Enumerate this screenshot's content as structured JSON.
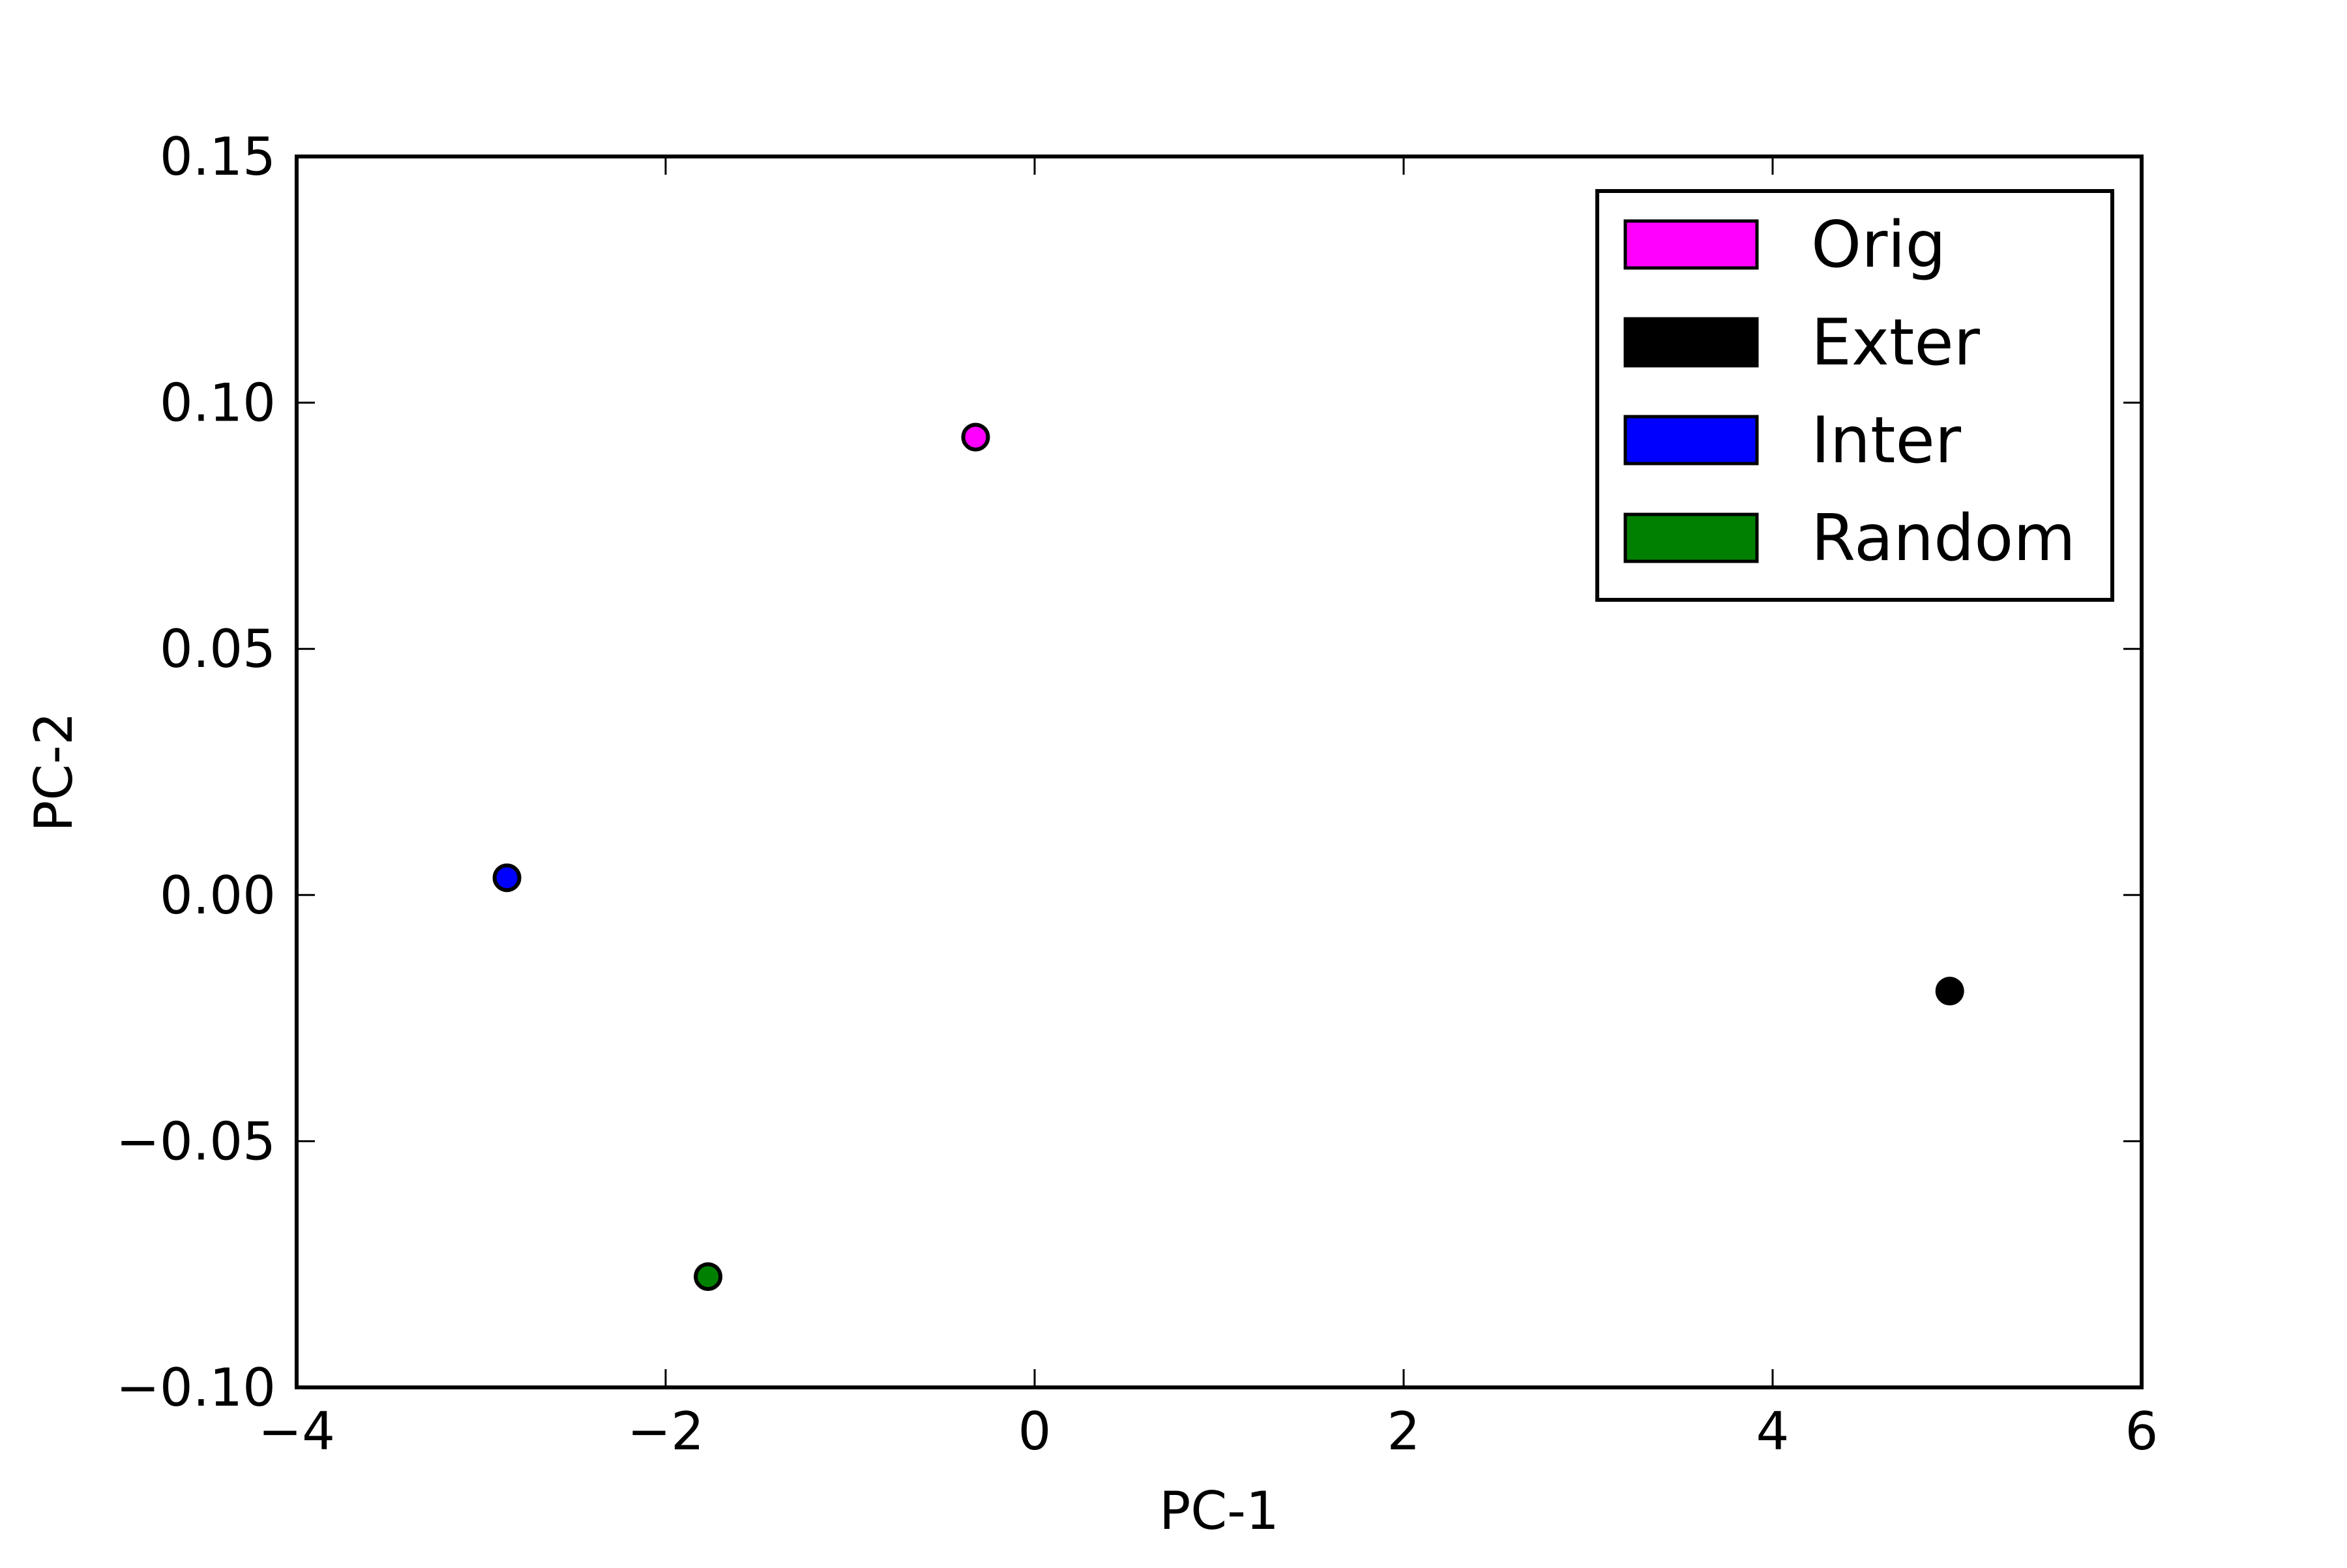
{
  "chart_data": {
    "type": "scatter",
    "title": "",
    "xlabel": "PC-1",
    "ylabel": "PC-2",
    "xlim": [
      -4,
      6
    ],
    "ylim": [
      -0.1,
      0.15
    ],
    "x_ticks": [
      -4,
      -2,
      0,
      2,
      4,
      6
    ],
    "x_tick_labels": [
      "−4",
      "−2",
      "0",
      "2",
      "4",
      "6"
    ],
    "y_ticks": [
      -0.1,
      -0.05,
      0.0,
      0.05,
      0.1,
      0.15
    ],
    "y_tick_labels": [
      "−0.10",
      "−0.05",
      "0.00",
      "0.05",
      "0.10",
      "0.15"
    ],
    "grid": false,
    "legend_position": "top-right",
    "series": [
      {
        "name": "Orig",
        "color": "#ff00ff",
        "points": [
          {
            "x": -0.32,
            "y": 0.093
          }
        ]
      },
      {
        "name": "Exter",
        "color": "#000000",
        "points": [
          {
            "x": 4.96,
            "y": -0.0195
          }
        ]
      },
      {
        "name": "Inter",
        "color": "#0000ff",
        "points": [
          {
            "x": -2.86,
            "y": 0.0035
          }
        ]
      },
      {
        "name": "Random",
        "color": "#008000",
        "points": [
          {
            "x": -1.77,
            "y": -0.0775
          }
        ]
      }
    ]
  }
}
